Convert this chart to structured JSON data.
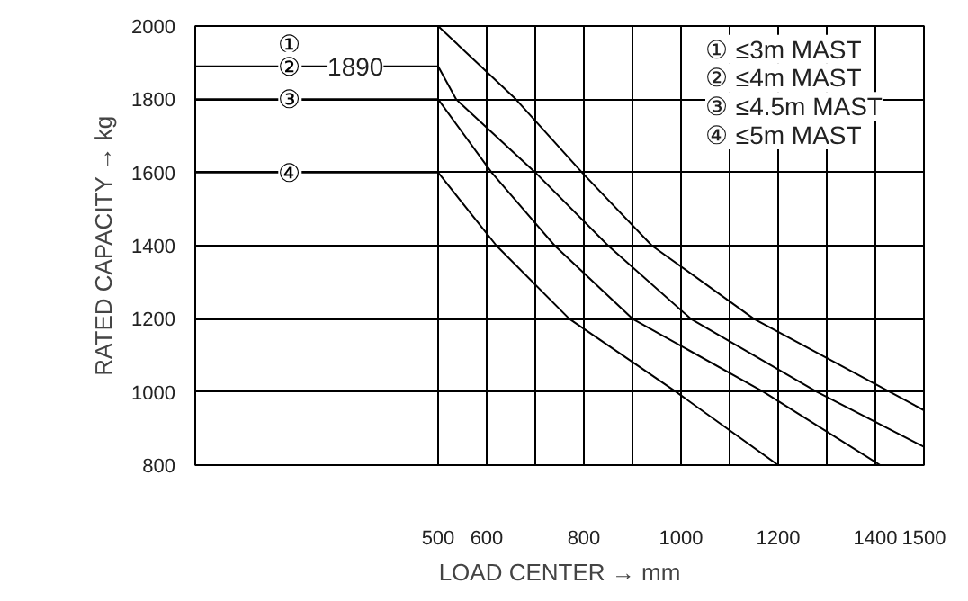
{
  "chart_data": {
    "type": "line",
    "xlabel": "LOAD CENTER → mm",
    "ylabel": "RATED CAPACITY → kg",
    "xlim": [
      0,
      1500
    ],
    "ylim": [
      800,
      2000
    ],
    "xticks": [
      500,
      600,
      {
        "value": 700,
        "label": null
      },
      800,
      {
        "value": 900,
        "label": null
      },
      1000,
      {
        "value": 1100,
        "label": null
      },
      1200,
      {
        "value": 1300,
        "label": null
      },
      1400,
      1500
    ],
    "yticks": [
      800,
      1000,
      1200,
      1400,
      1600,
      1800,
      2000
    ],
    "grid": true,
    "marker": "none",
    "line_style": "solid",
    "series": [
      {
        "name": "①",
        "color": "#000000",
        "x": [
          0,
          500,
          660,
          796,
          940,
          1150,
          1430,
          1500
        ],
        "values": [
          2000,
          2000,
          1800,
          1600,
          1400,
          1200,
          1000,
          950
        ]
      },
      {
        "name": "②",
        "color": "#000000",
        "x": [
          0,
          500,
          537,
          700,
          850,
          1020,
          1280,
          1500
        ],
        "values": [
          1890,
          1890,
          1800,
          1600,
          1400,
          1200,
          1000,
          850
        ]
      },
      {
        "name": "③",
        "color": "#000000",
        "x": [
          0,
          500,
          610,
          740,
          900,
          1170,
          1410
        ],
        "values": [
          1800,
          1800,
          1600,
          1400,
          1200,
          1000,
          800
        ]
      },
      {
        "name": "④",
        "color": "#000000",
        "x": [
          0,
          500,
          620,
          770,
          990,
          1200
        ],
        "values": [
          1600,
          1600,
          1400,
          1200,
          1000,
          800
        ]
      }
    ],
    "annotations": [
      {
        "text": "1890",
        "x": 330,
        "y": 1890
      },
      "① ≤3m MAST",
      "② ≤4m MAST",
      "③ ≤4.5m MAST",
      "④ ≤5m MAST"
    ]
  }
}
